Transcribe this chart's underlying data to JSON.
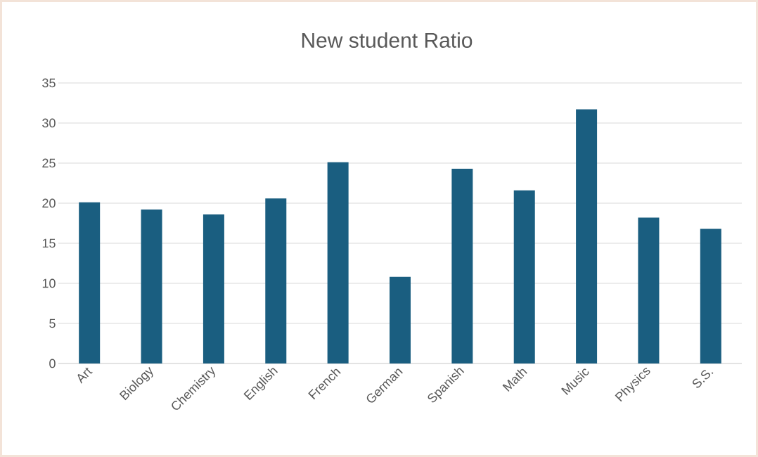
{
  "chart_data": {
    "type": "bar",
    "title": "New student Ratio",
    "categories": [
      "Art",
      "Biology",
      "Chemistry",
      "English",
      "French",
      "German",
      "Spanish",
      "Math",
      "Music",
      "Physics",
      "S.S."
    ],
    "values": [
      20.1,
      19.2,
      18.6,
      20.6,
      25.1,
      10.8,
      24.3,
      21.6,
      31.7,
      18.2,
      16.8
    ],
    "color": "#1a5e80",
    "ylim": [
      0,
      35
    ],
    "yticks": [
      0,
      5,
      10,
      15,
      20,
      25,
      30,
      35
    ],
    "grid": "y"
  }
}
